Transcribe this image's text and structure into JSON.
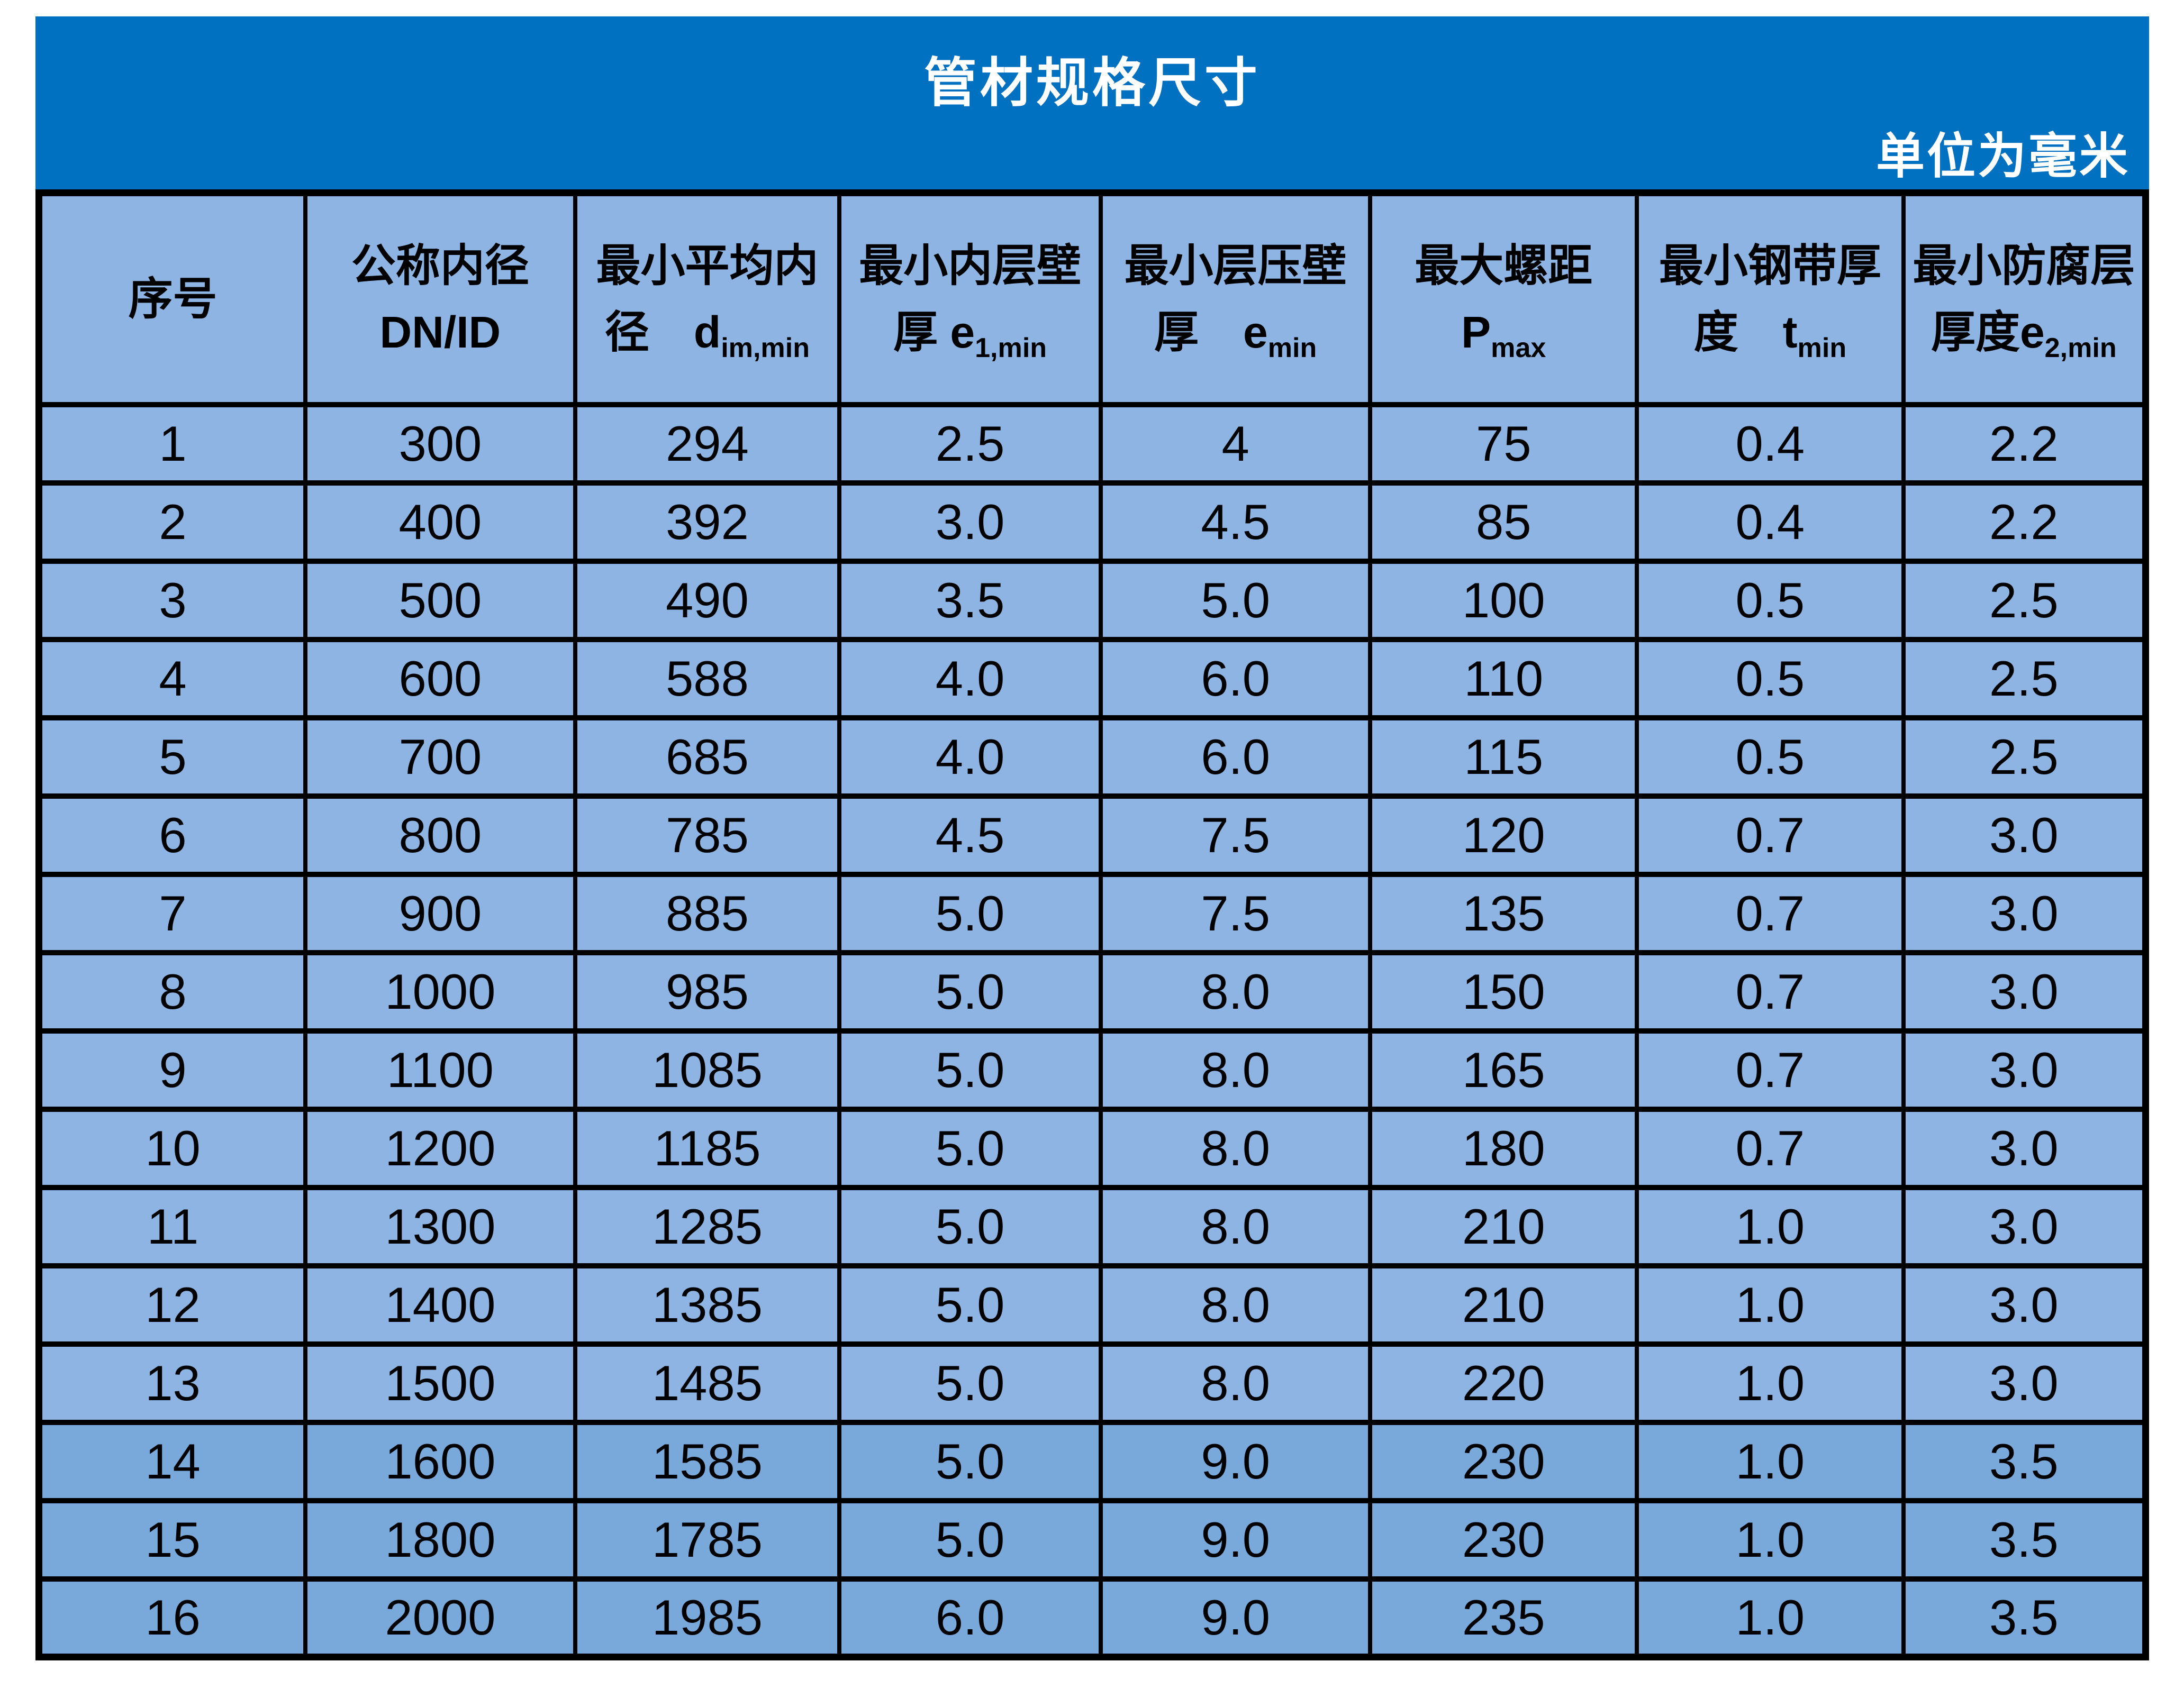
{
  "banner": {
    "title": "管材规格尺寸",
    "unit_note": "单位为毫米",
    "bg_color": "#0070C0",
    "text_color": "#ffffff"
  },
  "table": {
    "border_color": "#000000",
    "cell_bg": "#8DB4E2",
    "cell_bg_dark": "#79A9DB",
    "dark_rows": [
      13,
      14,
      15
    ],
    "columns": [
      {
        "l1": "序号",
        "l2": "",
        "sub": ""
      },
      {
        "l1": "公称内径",
        "l2": "DN/ID",
        "sub": ""
      },
      {
        "l1": "最小平均内",
        "l2": "径　d",
        "sub": "im,min"
      },
      {
        "l1": "最小内层壁",
        "l2": "厚 e",
        "sub": "1,min"
      },
      {
        "l1": "最小层压壁",
        "l2": "厚　e",
        "sub": "min"
      },
      {
        "l1": "最大螺距",
        "l2": "P",
        "sub": "max"
      },
      {
        "l1": "最小钢带厚",
        "l2": "度　t",
        "sub": "min"
      },
      {
        "l1": "最小防腐层",
        "l2": "厚度e",
        "sub": "2,min"
      }
    ],
    "rows": [
      [
        "1",
        "300",
        "294",
        "2.5",
        "4",
        "75",
        "0.4",
        "2.2"
      ],
      [
        "2",
        "400",
        "392",
        "3.0",
        "4.5",
        "85",
        "0.4",
        "2.2"
      ],
      [
        "3",
        "500",
        "490",
        "3.5",
        "5.0",
        "100",
        "0.5",
        "2.5"
      ],
      [
        "4",
        "600",
        "588",
        "4.0",
        "6.0",
        "110",
        "0.5",
        "2.5"
      ],
      [
        "5",
        "700",
        "685",
        "4.0",
        "6.0",
        "115",
        "0.5",
        "2.5"
      ],
      [
        "6",
        "800",
        "785",
        "4.5",
        "7.5",
        "120",
        "0.7",
        "3.0"
      ],
      [
        "7",
        "900",
        "885",
        "5.0",
        "7.5",
        "135",
        "0.7",
        "3.0"
      ],
      [
        "8",
        "1000",
        "985",
        "5.0",
        "8.0",
        "150",
        "0.7",
        "3.0"
      ],
      [
        "9",
        "1100",
        "1085",
        "5.0",
        "8.0",
        "165",
        "0.7",
        "3.0"
      ],
      [
        "10",
        "1200",
        "1185",
        "5.0",
        "8.0",
        "180",
        "0.7",
        "3.0"
      ],
      [
        "11",
        "1300",
        "1285",
        "5.0",
        "8.0",
        "210",
        "1.0",
        "3.0"
      ],
      [
        "12",
        "1400",
        "1385",
        "5.0",
        "8.0",
        "210",
        "1.0",
        "3.0"
      ],
      [
        "13",
        "1500",
        "1485",
        "5.0",
        "8.0",
        "220",
        "1.0",
        "3.0"
      ],
      [
        "14",
        "1600",
        "1585",
        "5.0",
        "9.0",
        "230",
        "1.0",
        "3.5"
      ],
      [
        "15",
        "1800",
        "1785",
        "5.0",
        "9.0",
        "230",
        "1.0",
        "3.5"
      ],
      [
        "16",
        "2000",
        "1985",
        "6.0",
        "9.0",
        "235",
        "1.0",
        "3.5"
      ]
    ]
  }
}
